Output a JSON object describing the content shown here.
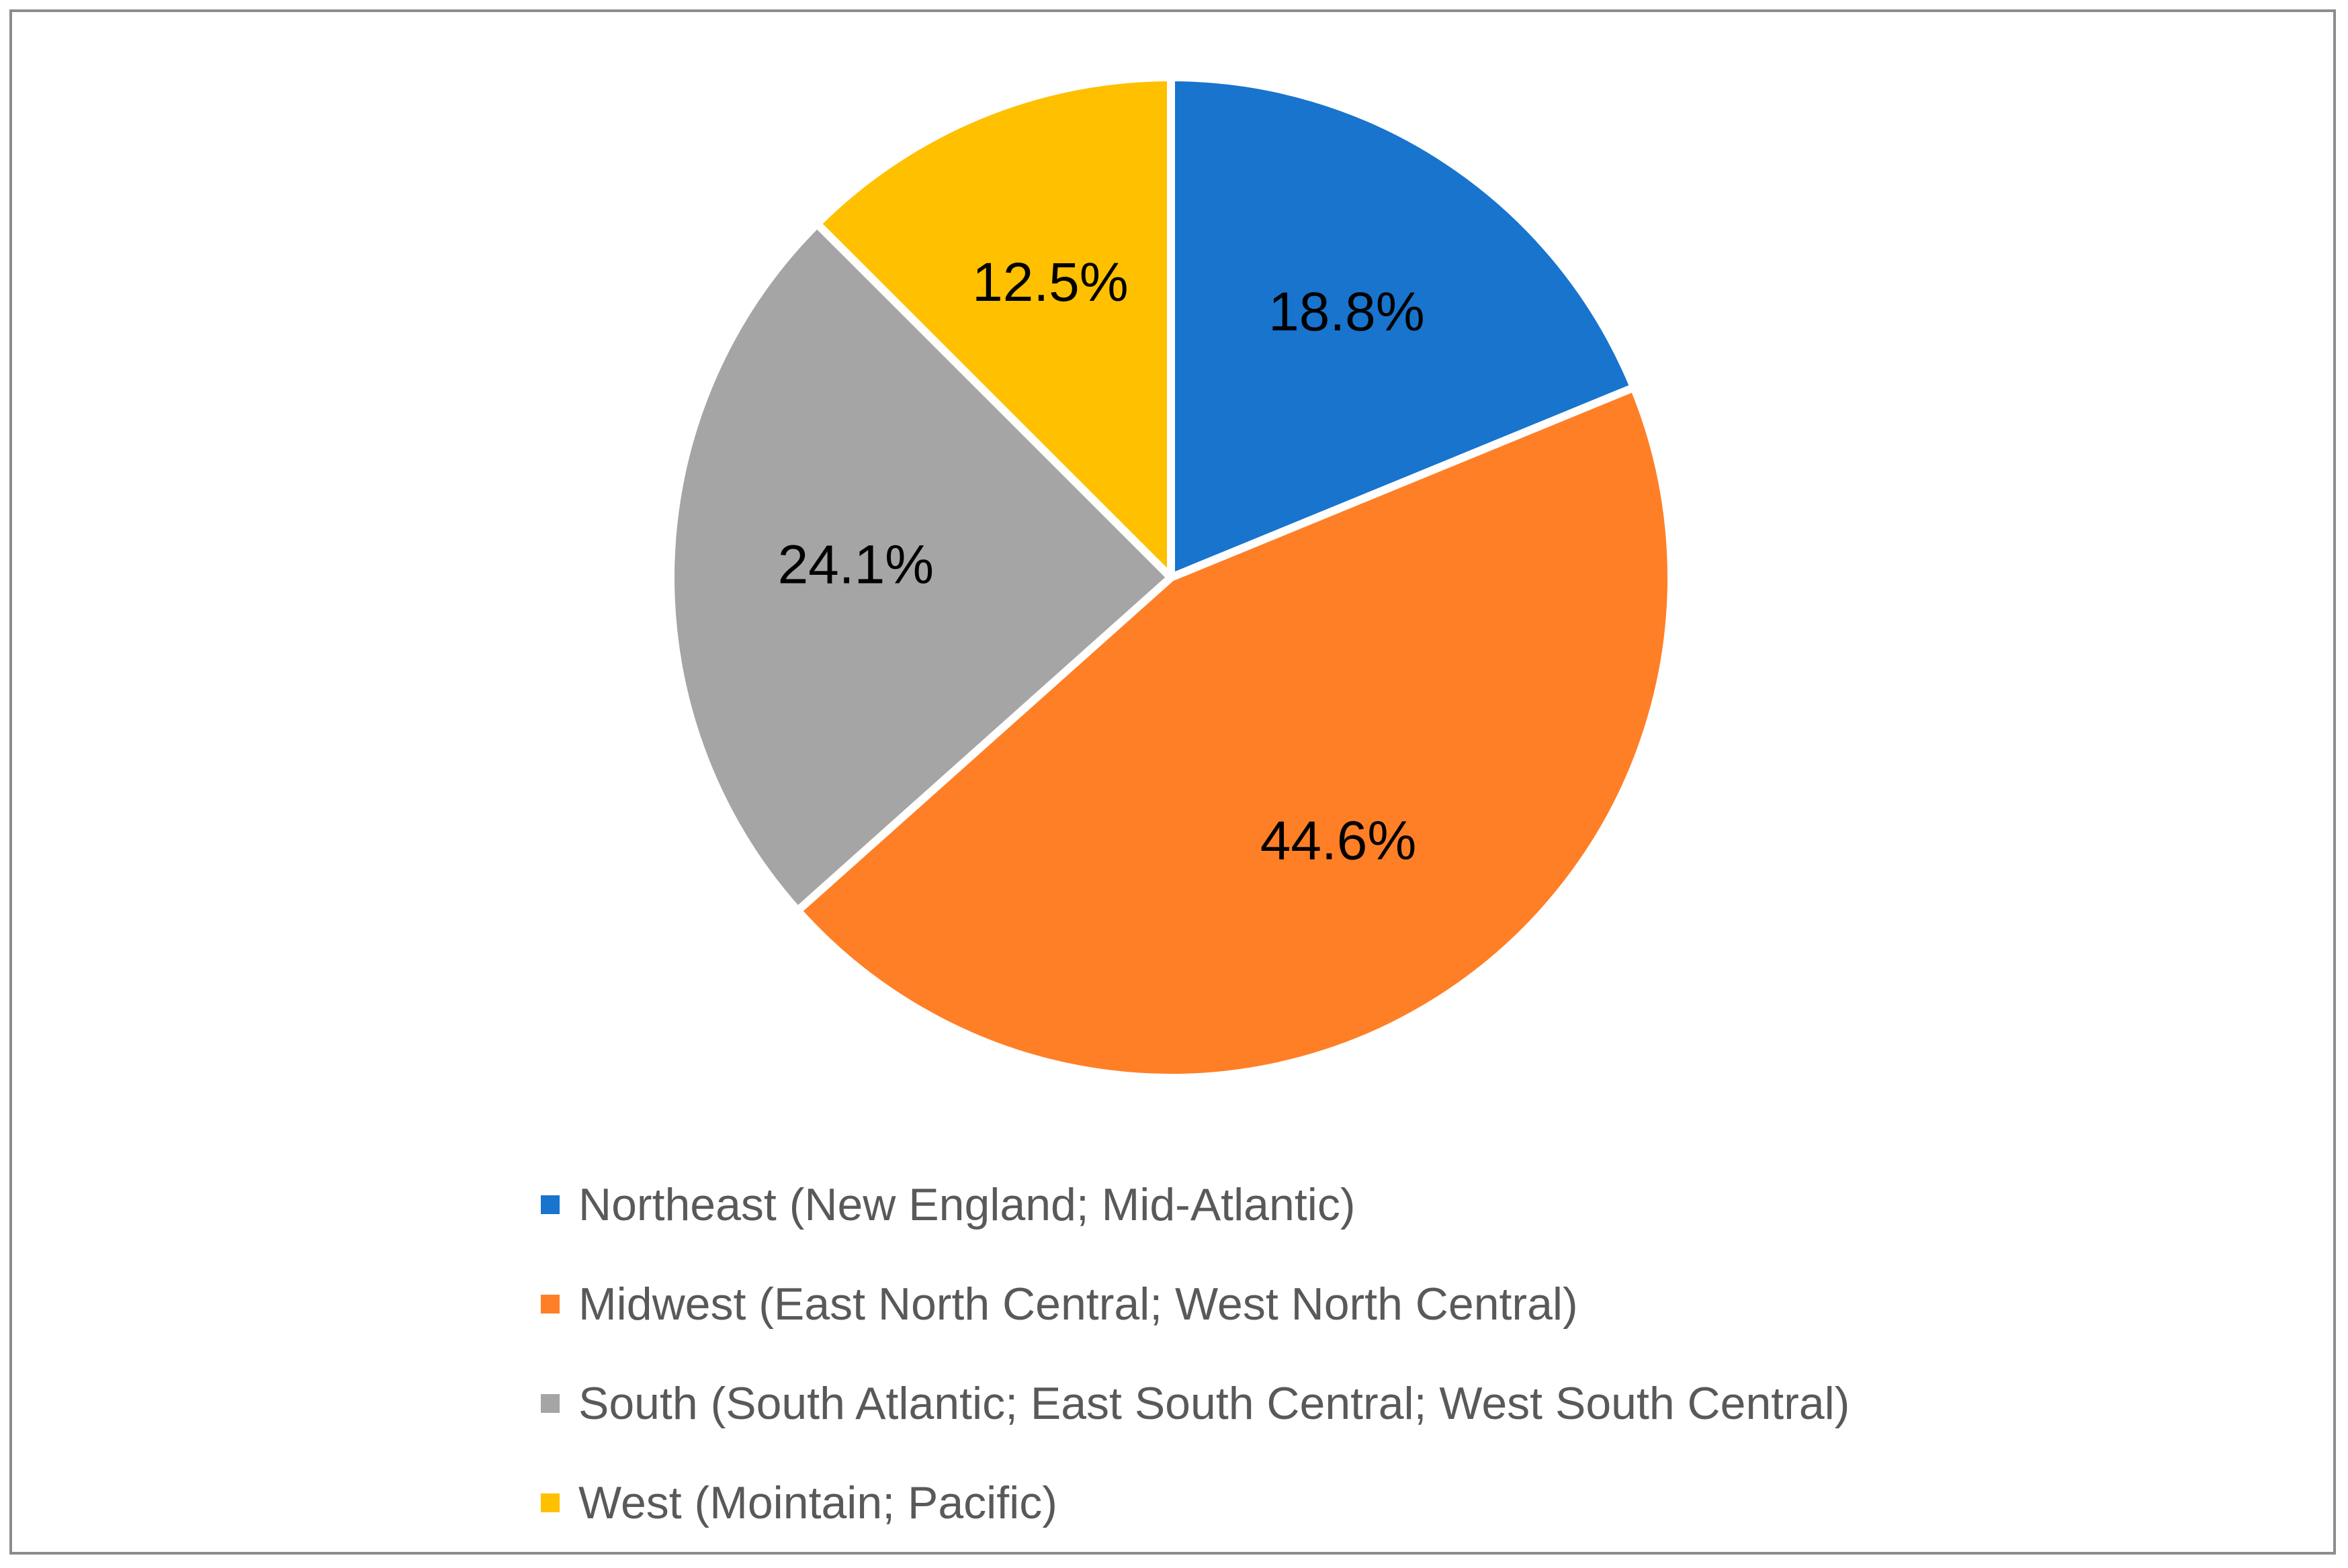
{
  "chart_data": {
    "type": "pie",
    "title": "",
    "slices": [
      {
        "label": "Northeast (New England; Mid-Atlantic)",
        "value": 18.8,
        "display": "18.8%",
        "color": "#1874CD"
      },
      {
        "label": "Midwest (East North Central; West North Central)",
        "value": 44.6,
        "display": "44.6%",
        "color": "#FF7F27"
      },
      {
        "label": "South (South Atlantic; East South Central; West South Central)",
        "value": 24.1,
        "display": "24.1%",
        "color": "#A5A5A5"
      },
      {
        "label": "West (Mointain; Pacific)",
        "value": 12.5,
        "display": "12.5%",
        "color": "#FFC000"
      }
    ],
    "start_angle": "12 o'clock",
    "direction": "clockwise",
    "legend_position": "bottom"
  }
}
